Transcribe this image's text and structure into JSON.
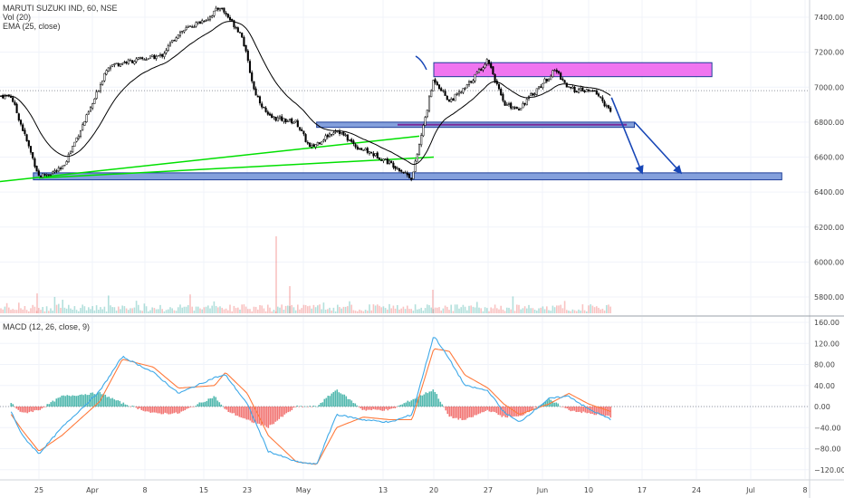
{
  "header": {
    "symbol_line": "MARUTI SUZUKI IND, 60, NSE",
    "vol_label": "Vol (20)",
    "ema_label": "EMA (25, close)"
  },
  "macd_panel": {
    "label": "MACD (12, 26, close, 9)"
  },
  "colors": {
    "up": "#26a69a",
    "down": "#ef5350",
    "ema": "#000000",
    "trendline": "#00e000",
    "zone_blue": "#6f8fd6",
    "zone_magenta": "#ee66ee",
    "arrow": "#1746b6",
    "macd_line": "#3fa9e8",
    "signal_line": "#ff7a3c"
  },
  "chart_data": [
    {
      "type": "candlestick",
      "title": "MARUTI SUZUKI IND, 60, NSE",
      "price_axis_ticks": [
        5800,
        6000,
        6200,
        6400,
        6600,
        6800,
        7000,
        7200,
        7400
      ],
      "ylim": [
        5700,
        7480
      ],
      "date_axis_ticks": [
        "25",
        "Apr",
        "8",
        "15",
        "23",
        "May",
        "13",
        "20",
        "27",
        "Jun",
        "10",
        "17",
        "24",
        "Jul",
        "8"
      ],
      "close_path_by_date": [
        {
          "date": "Mar 20",
          "close": 6950
        },
        {
          "date": "Mar 25",
          "close": 6490
        },
        {
          "date": "Mar 28",
          "close": 6530
        },
        {
          "date": "Apr 1",
          "close": 6900
        },
        {
          "date": "Apr 3",
          "close": 7120
        },
        {
          "date": "Apr 5",
          "close": 7140
        },
        {
          "date": "Apr 10",
          "close": 7180
        },
        {
          "date": "Apr 12",
          "close": 7310
        },
        {
          "date": "Apr 16",
          "close": 7400
        },
        {
          "date": "Apr 18",
          "close": 7460
        },
        {
          "date": "Apr 22",
          "close": 7300
        },
        {
          "date": "Apr 24",
          "close": 6980
        },
        {
          "date": "Apr 26",
          "close": 6830
        },
        {
          "date": "Apr 30",
          "close": 6800
        },
        {
          "date": "May 2",
          "close": 6650
        },
        {
          "date": "May 6",
          "close": 6760
        },
        {
          "date": "May 9",
          "close": 6660
        },
        {
          "date": "May 13",
          "close": 6590
        },
        {
          "date": "May 15",
          "close": 6540
        },
        {
          "date": "May 17",
          "close": 6480
        },
        {
          "date": "May 20",
          "close": 7050
        },
        {
          "date": "May 22",
          "close": 6920
        },
        {
          "date": "May 24",
          "close": 6990
        },
        {
          "date": "May 27",
          "close": 7160
        },
        {
          "date": "May 29",
          "close": 6900
        },
        {
          "date": "May 31",
          "close": 6880
        },
        {
          "date": "Jun 3",
          "close": 7020
        },
        {
          "date": "Jun 5",
          "close": 7100
        },
        {
          "date": "Jun 7",
          "close": 6990
        },
        {
          "date": "Jun 11",
          "close": 6970
        },
        {
          "date": "Jun 13",
          "close": 6850
        }
      ],
      "ema_overlay": "EMA (25, close)",
      "volume_overlay": "Vol (20)",
      "drawn_zones_price": [
        {
          "name": "support-zone",
          "from": 6470,
          "to": 6510
        },
        {
          "name": "mid-zone",
          "from": 6770,
          "to": 6800
        },
        {
          "name": "resistance-zone",
          "from": 7060,
          "to": 7140
        }
      ],
      "trendlines_price": [
        {
          "from_date": "Mar 18",
          "from": 6460,
          "to_date": "May 18",
          "to": 6720
        },
        {
          "from_date": "Mar 25",
          "from": 6480,
          "to_date": "May 20",
          "to": 6600
        }
      ],
      "target_arrows_price": [
        {
          "from_date": "Jun 13",
          "from": 6940,
          "to_date": "Jun 17",
          "to": 6510
        },
        {
          "from_date": "Jun 16",
          "from": 6800,
          "to_date": "Jun 22",
          "to": 6510
        }
      ]
    },
    {
      "type": "line",
      "title": "MACD (12, 26, close, 9)",
      "axis_ticks": [
        -120,
        -80,
        -40,
        0,
        40,
        80,
        120,
        160
      ],
      "ylim": [
        -132,
        168
      ],
      "series": [
        {
          "name": "MACD",
          "points_by_date": [
            {
              "date": "Mar 20",
              "value": -10
            },
            {
              "date": "Mar 22",
              "value": -55
            },
            {
              "date": "Mar 25",
              "value": -90
            },
            {
              "date": "Mar 28",
              "value": -40
            },
            {
              "date": "Apr 2",
              "value": 30
            },
            {
              "date": "Apr 5",
              "value": 95
            },
            {
              "date": "Apr 9",
              "value": 65
            },
            {
              "date": "Apr 12",
              "value": 25
            },
            {
              "date": "Apr 17",
              "value": 55
            },
            {
              "date": "Apr 19",
              "value": 60
            },
            {
              "date": "Apr 23",
              "value": 5
            },
            {
              "date": "Apr 26",
              "value": -85
            },
            {
              "date": "Apr 30",
              "value": -105
            },
            {
              "date": "May 3",
              "value": -110
            },
            {
              "date": "May 6",
              "value": -15
            },
            {
              "date": "May 10",
              "value": -25
            },
            {
              "date": "May 14",
              "value": -30
            },
            {
              "date": "May 17",
              "value": -15
            },
            {
              "date": "May 20",
              "value": 135
            },
            {
              "date": "May 22",
              "value": 90
            },
            {
              "date": "May 24",
              "value": 40
            },
            {
              "date": "May 27",
              "value": 30
            },
            {
              "date": "May 29",
              "value": -10
            },
            {
              "date": "May 31",
              "value": -30
            },
            {
              "date": "Jun 4",
              "value": 15
            },
            {
              "date": "Jun 7",
              "value": 20
            },
            {
              "date": "Jun 10",
              "value": -5
            },
            {
              "date": "Jun 13",
              "value": -25
            }
          ]
        },
        {
          "name": "Signal",
          "points_by_date": [
            {
              "date": "Mar 20",
              "value": -15
            },
            {
              "date": "Mar 22",
              "value": -45
            },
            {
              "date": "Mar 25",
              "value": -85
            },
            {
              "date": "Mar 28",
              "value": -55
            },
            {
              "date": "Apr 2",
              "value": 10
            },
            {
              "date": "Apr 5",
              "value": 90
            },
            {
              "date": "Apr 9",
              "value": 75
            },
            {
              "date": "Apr 12",
              "value": 35
            },
            {
              "date": "Apr 17",
              "value": 40
            },
            {
              "date": "Apr 19",
              "value": 65
            },
            {
              "date": "Apr 23",
              "value": 25
            },
            {
              "date": "Apr 26",
              "value": -55
            },
            {
              "date": "Apr 30",
              "value": -105
            },
            {
              "date": "May 3",
              "value": -110
            },
            {
              "date": "May 6",
              "value": -40
            },
            {
              "date": "May 10",
              "value": -20
            },
            {
              "date": "May 14",
              "value": -25
            },
            {
              "date": "May 17",
              "value": -25
            },
            {
              "date": "May 20",
              "value": 110
            },
            {
              "date": "May 22",
              "value": 105
            },
            {
              "date": "May 24",
              "value": 60
            },
            {
              "date": "May 27",
              "value": 35
            },
            {
              "date": "May 29",
              "value": 5
            },
            {
              "date": "May 31",
              "value": -15
            },
            {
              "date": "Jun 4",
              "value": 5
            },
            {
              "date": "Jun 7",
              "value": 25
            },
            {
              "date": "Jun 10",
              "value": 5
            },
            {
              "date": "Jun 13",
              "value": -10
            }
          ]
        }
      ],
      "histogram": "MACD minus Signal, green above 0.00, red below"
    }
  ]
}
